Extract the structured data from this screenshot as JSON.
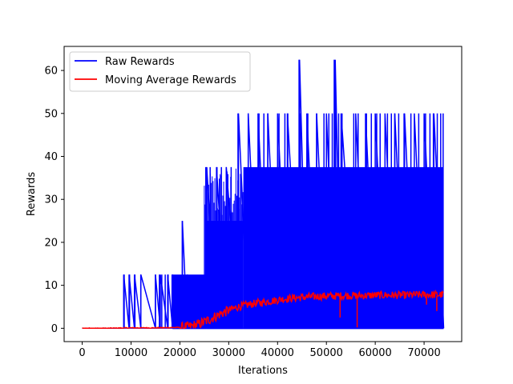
{
  "chart_data": {
    "type": "line",
    "xlabel": "Iterations",
    "ylabel": "Rewards",
    "xlim": [
      -3700,
      77700
    ],
    "ylim": [
      -3.1,
      65.6
    ],
    "x_ticks": [
      0,
      10000,
      20000,
      30000,
      40000,
      50000,
      60000,
      70000
    ],
    "x_tick_labels": [
      "0",
      "10000",
      "20000",
      "30000",
      "40000",
      "50000",
      "60000",
      "70000"
    ],
    "y_ticks": [
      0,
      10,
      20,
      30,
      40,
      50,
      60
    ],
    "y_tick_labels": [
      "0",
      "10",
      "20",
      "30",
      "40",
      "50",
      "60"
    ],
    "grid": false,
    "legend_position": "top-left",
    "colors": {
      "raw": "#0000ff",
      "moving_average": "#ff0000",
      "axes": "#000000"
    },
    "series": [
      {
        "name": "Raw Rewards",
        "color": "#0000ff",
        "x": [
          0,
          8500,
          8500,
          9600,
          9600,
          10700,
          10700,
          12000,
          12000,
          15000,
          15000,
          16000,
          16000,
          17500,
          17500,
          18500,
          18500,
          20500,
          20500,
          21500,
          21500,
          25500,
          25500,
          27500,
          27500,
          29500,
          29500,
          32000,
          32000,
          34000,
          34000,
          36000,
          36000,
          38000,
          38000,
          40000,
          40000,
          42000,
          42000,
          44500,
          44500,
          46000,
          46000,
          48000,
          48000,
          50000,
          50000,
          51800,
          51800,
          53000,
          53000,
          56000,
          56000,
          58000,
          58000,
          60000,
          60000,
          62000,
          62000,
          64000,
          64000,
          66000,
          66000,
          68000,
          68000,
          70000,
          70000,
          72000,
          72000,
          74000
        ],
        "y": [
          0,
          0,
          12.5,
          0,
          12.5,
          0,
          12.5,
          0,
          12.5,
          0,
          12.5,
          0,
          12.5,
          0,
          12.5,
          0,
          12.5,
          0,
          25,
          0,
          12.5,
          0,
          37.5,
          0,
          37.5,
          0,
          37.5,
          0,
          50,
          0,
          50,
          0,
          50,
          0,
          50,
          0,
          50,
          0,
          50,
          0,
          62.5,
          0,
          50,
          0,
          50,
          0,
          50,
          0,
          62.5,
          0,
          50,
          0,
          50,
          0,
          50,
          0,
          50,
          0,
          50,
          0,
          50,
          0,
          50,
          0,
          50,
          0,
          50,
          0,
          50,
          0
        ]
      },
      {
        "name": "Moving Average Rewards",
        "color": "#ff0000",
        "x": [
          0,
          5000,
          10000,
          15000,
          20000,
          22000,
          24000,
          26000,
          28000,
          30000,
          32000,
          34000,
          36000,
          38000,
          40000,
          42000,
          44000,
          46000,
          48000,
          50000,
          52000,
          54000,
          56000,
          58000,
          60000,
          62000,
          64000,
          66000,
          68000,
          70000,
          72000,
          74000
        ],
        "y": [
          0,
          0,
          0.1,
          0.1,
          0.2,
          0.4,
          1.0,
          2.0,
          3.2,
          4.2,
          5.0,
          5.5,
          5.9,
          6.2,
          6.6,
          6.9,
          7.1,
          7.3,
          7.4,
          7.5,
          7.5,
          7.6,
          7.6,
          7.6,
          7.7,
          7.7,
          7.7,
          7.7,
          7.8,
          7.8,
          7.8,
          7.8
        ]
      }
    ]
  }
}
